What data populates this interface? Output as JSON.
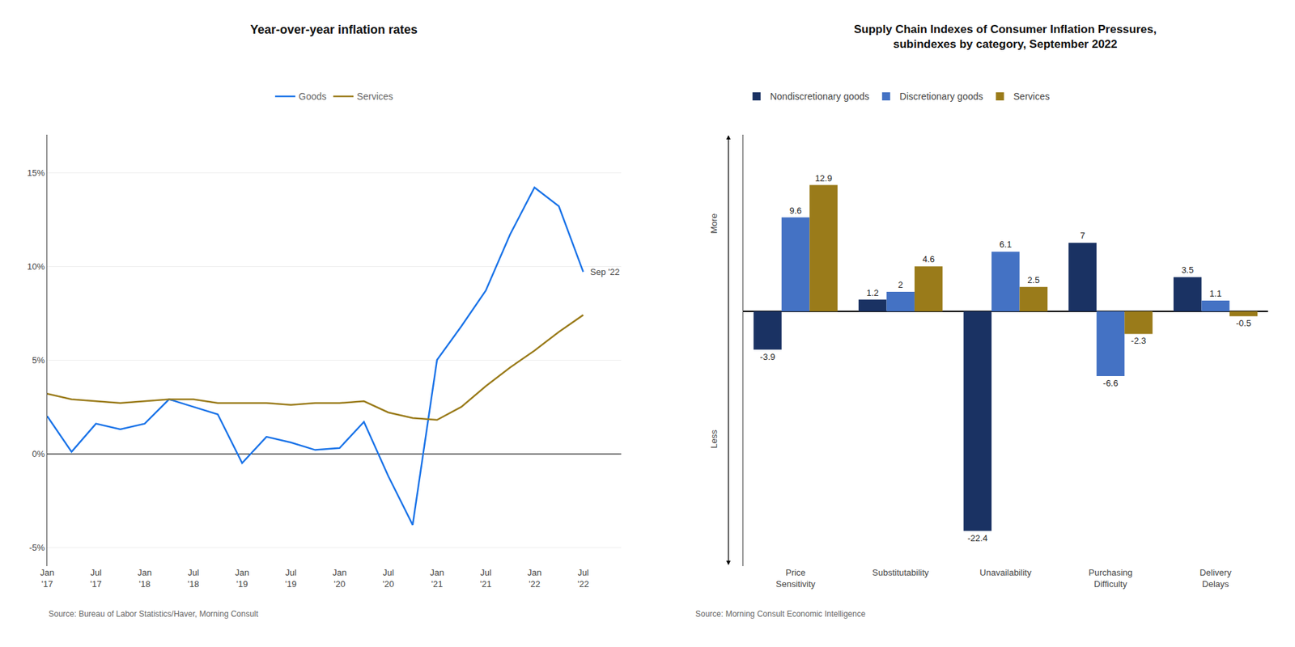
{
  "chart_data": [
    {
      "type": "line",
      "title": "Year-over-year inflation rates",
      "source": "Source: Bureau of Labor Statistics/Haver, Morning Consult",
      "annotations": [
        "Sep '22"
      ],
      "categories": [
        "Jan\n'17",
        null,
        "Jul\n'17",
        null,
        "Jan\n'18",
        null,
        "Jul\n'18",
        null,
        "Jan\n'19",
        null,
        "Jul\n'19",
        null,
        "Jan\n'20",
        null,
        "Jul\n'20",
        null,
        "Jan\n'21",
        null,
        "Jul\n'21",
        null,
        "Jan\n'22",
        null,
        "Jul\n'22"
      ],
      "series": [
        {
          "name": "Goods",
          "color": "#1a73e8",
          "values": [
            2.0,
            0.1,
            1.6,
            1.3,
            1.6,
            2.9,
            2.5,
            2.1,
            -0.5,
            0.9,
            0.6,
            0.2,
            0.3,
            1.7,
            -1.2,
            -3.8,
            5.0,
            6.8,
            8.7,
            11.7,
            14.2,
            13.2,
            9.7
          ]
        },
        {
          "name": "Services",
          "color": "#9a7b1a",
          "values": [
            3.2,
            2.9,
            2.8,
            2.7,
            2.8,
            2.9,
            2.9,
            2.7,
            2.7,
            2.7,
            2.6,
            2.7,
            2.7,
            2.8,
            2.2,
            1.9,
            1.8,
            2.5,
            3.6,
            4.6,
            5.5,
            6.5,
            7.4
          ]
        }
      ],
      "ylim": [
        -6,
        17
      ],
      "yticks": [
        {
          "value": -5,
          "label": "-5%"
        },
        {
          "value": 0,
          "label": "0%"
        },
        {
          "value": 5,
          "label": "5%"
        },
        {
          "value": 10,
          "label": "10%"
        },
        {
          "value": 15,
          "label": "15%"
        }
      ],
      "grid": true,
      "legend": "top"
    },
    {
      "type": "bar",
      "title": "Supply Chain Indexes of Consumer Inflation Pressures,\nsubindexes by category, September 2022",
      "source": "Source: Morning Consult Economic Intelligence",
      "annotations": [
        "More",
        "Less"
      ],
      "categories": [
        "Price\nSensitivity",
        "Substitutability",
        "Unavailability",
        "Purchasing\nDifficulty",
        "Delivery\nDelays"
      ],
      "series": [
        {
          "name": "Nondiscretionary goods",
          "color": "#1a3263",
          "values": [
            -3.9,
            1.2,
            -22.4,
            7.0,
            3.5
          ]
        },
        {
          "name": "Discretionary goods",
          "color": "#4472c4",
          "values": [
            9.6,
            2.0,
            6.1,
            -6.6,
            1.1
          ]
        },
        {
          "name": "Services",
          "color": "#9a7b1a",
          "values": [
            12.9,
            4.6,
            2.5,
            -2.3,
            -0.5
          ]
        }
      ],
      "ylim": [
        -26,
        18
      ],
      "data_labels": true,
      "tick_labels": "x",
      "grid": false,
      "legend": "top"
    }
  ]
}
